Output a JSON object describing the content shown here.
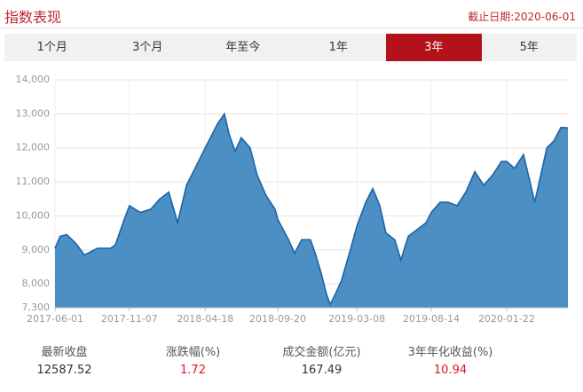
{
  "header": {
    "title": "指数表现",
    "date": "截止日期:2020-06-01"
  },
  "tabs": [
    {
      "label": "1个月"
    },
    {
      "label": "3个月"
    },
    {
      "label": "年至今"
    },
    {
      "label": "1年"
    },
    {
      "label": "3年",
      "selected": true
    },
    {
      "label": "5年"
    }
  ],
  "chart_data": {
    "type": "area",
    "color": "#4b8fc4",
    "line_color": "#1d64a6",
    "grid": true,
    "x": [
      "2017-06-01",
      "2017-06-12",
      "2017-06-26",
      "2017-07-15",
      "2017-08-03",
      "2017-08-31",
      "2017-09-28",
      "2017-10-08",
      "2017-10-27",
      "2017-11-07",
      "2017-11-30",
      "2017-12-23",
      "2018-01-11",
      "2018-01-30",
      "2018-02-18",
      "2018-03-09",
      "2018-03-31",
      "2018-04-18",
      "2018-05-14",
      "2018-05-29",
      "2018-06-08",
      "2018-06-21",
      "2018-07-04",
      "2018-07-23",
      "2018-08-07",
      "2018-08-26",
      "2018-09-14",
      "2018-09-20",
      "2018-10-13",
      "2018-10-26",
      "2018-11-10",
      "2018-11-29",
      "2018-12-09",
      "2018-12-22",
      "2019-01-02",
      "2019-01-10",
      "2019-01-21",
      "2019-02-03",
      "2019-02-22",
      "2019-03-08",
      "2019-03-27",
      "2019-04-11",
      "2019-04-26",
      "2019-05-09",
      "2019-05-28",
      "2019-06-10",
      "2019-06-26",
      "2019-07-15",
      "2019-08-03",
      "2019-08-14",
      "2019-09-02",
      "2019-09-19",
      "2019-10-08",
      "2019-10-27",
      "2019-11-15",
      "2019-12-04",
      "2019-12-23",
      "2020-01-11",
      "2020-01-22",
      "2020-02-08",
      "2020-02-27",
      "2020-03-12",
      "2020-03-22",
      "2020-04-04",
      "2020-04-17",
      "2020-05-02",
      "2020-05-17",
      "2020-06-01"
    ],
    "values": [
      9050,
      9400,
      9450,
      9200,
      8850,
      9050,
      9050,
      9150,
      9900,
      10300,
      10100,
      10200,
      10500,
      10700,
      9800,
      10900,
      11500,
      12000,
      12700,
      13000,
      12400,
      11900,
      12300,
      12000,
      11200,
      10600,
      10200,
      9900,
      9300,
      8900,
      9300,
      9300,
      8900,
      8300,
      7700,
      7400,
      7700,
      8100,
      9000,
      9700,
      10400,
      10800,
      10300,
      9500,
      9300,
      8700,
      9400,
      9600,
      9800,
      10100,
      10400,
      10400,
      10300,
      10700,
      11300,
      10900,
      11200,
      11600,
      11600,
      11400,
      11800,
      11000,
      10400,
      11200,
      12000,
      12200,
      12600,
      12587.52
    ],
    "xlim": [
      "2017-06-01",
      "2020-06-01"
    ],
    "xticks": [
      "2017-06-01",
      "2017-11-07",
      "2018-04-18",
      "2018-09-20",
      "2019-03-08",
      "2019-08-14",
      "2020-01-22"
    ],
    "ylim": [
      7300,
      14000
    ],
    "yticks": [
      {
        "value": 7300,
        "label": "7,300"
      },
      {
        "value": 8000,
        "label": "8,000"
      },
      {
        "value": 9000,
        "label": "9,000"
      },
      {
        "value": 10000,
        "label": "10,000"
      },
      {
        "value": 11000,
        "label": "11,000"
      },
      {
        "value": 12000,
        "label": "12,000"
      },
      {
        "value": 13000,
        "label": "13,000"
      },
      {
        "value": 14000,
        "label": "14,000"
      }
    ]
  },
  "stats": [
    {
      "label": "最新收盘",
      "value": 12587.52
    },
    {
      "label": "涨跌幅(%)",
      "value": 1.72
    },
    {
      "label": "成交金额(亿元)",
      "value": 167.49
    },
    {
      "label": "3年年化收益(%)",
      "value": 10.94
    }
  ]
}
